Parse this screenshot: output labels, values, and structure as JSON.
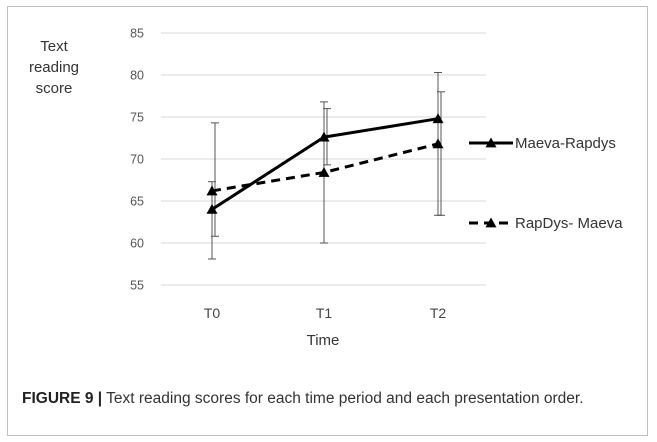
{
  "chart_data": {
    "type": "line",
    "title": "",
    "xlabel": "Time",
    "ylabel": "Text reading score",
    "ylabel_lines": [
      "Text",
      "reading",
      "score"
    ],
    "categories": [
      "T0",
      "T1",
      "T2"
    ],
    "ylim": [
      55,
      85
    ],
    "yticks": [
      55,
      60,
      65,
      70,
      75,
      80,
      85
    ],
    "grid": true,
    "legend": "right",
    "series": [
      {
        "name": "Maeva-Rapdys",
        "values": [
          64.0,
          72.6,
          74.8
        ],
        "err_low": [
          58.1,
          60.0,
          63.3
        ],
        "err_high": [
          67.3,
          76.8,
          80.3
        ],
        "style": "solid",
        "color": "#000000"
      },
      {
        "name": "RapDys- Maeva",
        "values": [
          66.2,
          68.4,
          71.8
        ],
        "err_low": [
          60.8,
          69.3,
          63.3
        ],
        "err_high": [
          74.3,
          76.0,
          78.0
        ],
        "style": "dashed",
        "color": "#000000"
      }
    ]
  },
  "caption": {
    "label": "FIGURE 9 |",
    "text": " Text reading scores for each time period and each presentation order."
  }
}
